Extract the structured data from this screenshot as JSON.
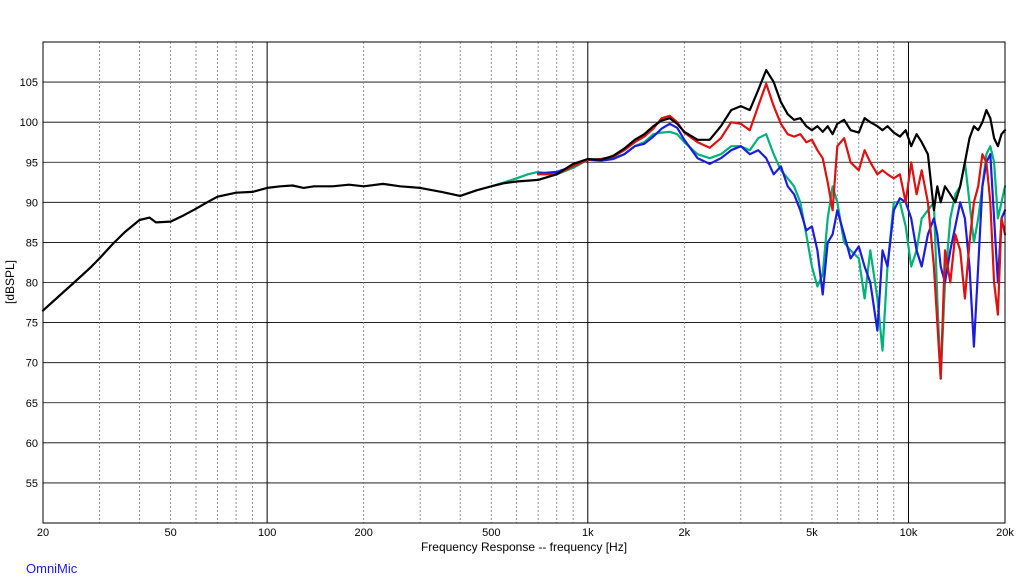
{
  "chart_data": {
    "type": "line",
    "title": "",
    "xlabel": "Frequency Response -- frequency [Hz]",
    "ylabel": "[dBSPL]",
    "x_scale": "log",
    "xlim": [
      20,
      20000
    ],
    "ylim": [
      50,
      110
    ],
    "grid": true,
    "x_major_ticks": [
      20,
      100,
      1000,
      10000,
      20000
    ],
    "x_tick_labels": [
      {
        "value": 20,
        "label": "20"
      },
      {
        "value": 50,
        "label": "50"
      },
      {
        "value": 100,
        "label": "100"
      },
      {
        "value": 200,
        "label": "200"
      },
      {
        "value": 500,
        "label": "500"
      },
      {
        "value": 1000,
        "label": "1k"
      },
      {
        "value": 2000,
        "label": "2k"
      },
      {
        "value": 5000,
        "label": "5k"
      },
      {
        "value": 10000,
        "label": "10k"
      },
      {
        "value": 20000,
        "label": "20k"
      }
    ],
    "y_ticks": [
      55,
      60,
      65,
      70,
      75,
      80,
      85,
      90,
      95,
      100,
      105
    ],
    "series": [
      {
        "color": "#00b27a",
        "points": [
          [
            500,
            92
          ],
          [
            550,
            92.5
          ],
          [
            600,
            93
          ],
          [
            650,
            93.5
          ],
          [
            700,
            93.8
          ],
          [
            750,
            93.6
          ],
          [
            800,
            93.5
          ],
          [
            900,
            94.3
          ],
          [
            1000,
            95.3
          ],
          [
            1100,
            95.3
          ],
          [
            1200,
            95.5
          ],
          [
            1300,
            96
          ],
          [
            1400,
            97
          ],
          [
            1500,
            97.5
          ],
          [
            1600,
            98.5
          ],
          [
            1700,
            98.7
          ],
          [
            1800,
            98.8
          ],
          [
            1900,
            98.5
          ],
          [
            2000,
            97.5
          ],
          [
            2200,
            96
          ],
          [
            2400,
            95.5
          ],
          [
            2600,
            96
          ],
          [
            2800,
            97
          ],
          [
            3000,
            97
          ],
          [
            3200,
            96.5
          ],
          [
            3400,
            98
          ],
          [
            3600,
            98.5
          ],
          [
            3800,
            96
          ],
          [
            4000,
            94
          ],
          [
            4200,
            93
          ],
          [
            4400,
            92
          ],
          [
            4600,
            90
          ],
          [
            4800,
            86
          ],
          [
            5000,
            82
          ],
          [
            5200,
            79.5
          ],
          [
            5400,
            81
          ],
          [
            5600,
            88
          ],
          [
            5800,
            92
          ],
          [
            6000,
            90
          ],
          [
            6300,
            85
          ],
          [
            6600,
            84
          ],
          [
            7000,
            83
          ],
          [
            7300,
            78
          ],
          [
            7600,
            84
          ],
          [
            8000,
            78
          ],
          [
            8300,
            71.5
          ],
          [
            8600,
            82
          ],
          [
            9000,
            90
          ],
          [
            9400,
            90
          ],
          [
            9800,
            87
          ],
          [
            10200,
            82
          ],
          [
            10600,
            84
          ],
          [
            11000,
            88
          ],
          [
            11500,
            89
          ],
          [
            12000,
            90
          ],
          [
            12300,
            78
          ],
          [
            12600,
            68
          ],
          [
            13000,
            80
          ],
          [
            13500,
            88
          ],
          [
            14000,
            91
          ],
          [
            14500,
            92
          ],
          [
            15000,
            95
          ],
          [
            15500,
            90
          ],
          [
            16000,
            85
          ],
          [
            16500,
            88
          ],
          [
            17000,
            92
          ],
          [
            17500,
            96
          ],
          [
            18000,
            97
          ],
          [
            18500,
            95
          ],
          [
            19000,
            88
          ],
          [
            19500,
            90
          ],
          [
            20000,
            92
          ]
        ]
      },
      {
        "color": "#1c1ce0",
        "points": [
          [
            700,
            93.6
          ],
          [
            800,
            93.8
          ],
          [
            900,
            94.5
          ],
          [
            1000,
            95.3
          ],
          [
            1100,
            95.2
          ],
          [
            1200,
            95.4
          ],
          [
            1300,
            96
          ],
          [
            1400,
            97
          ],
          [
            1500,
            97.3
          ],
          [
            1600,
            98.2
          ],
          [
            1700,
            99.2
          ],
          [
            1800,
            99.8
          ],
          [
            1900,
            99.3
          ],
          [
            2000,
            97.8
          ],
          [
            2200,
            95.5
          ],
          [
            2400,
            94.8
          ],
          [
            2600,
            95.5
          ],
          [
            2800,
            96.5
          ],
          [
            3000,
            97
          ],
          [
            3200,
            96
          ],
          [
            3400,
            96.5
          ],
          [
            3600,
            95.5
          ],
          [
            3800,
            93.5
          ],
          [
            4000,
            94.5
          ],
          [
            4200,
            92
          ],
          [
            4400,
            91
          ],
          [
            4600,
            89
          ],
          [
            4800,
            86.5
          ],
          [
            5000,
            87
          ],
          [
            5200,
            84
          ],
          [
            5400,
            78.5
          ],
          [
            5600,
            85
          ],
          [
            5800,
            86
          ],
          [
            6000,
            89
          ],
          [
            6300,
            86
          ],
          [
            6600,
            83
          ],
          [
            7000,
            84.5
          ],
          [
            7300,
            82
          ],
          [
            7600,
            80
          ],
          [
            8000,
            74
          ],
          [
            8300,
            84
          ],
          [
            8600,
            82
          ],
          [
            9000,
            89
          ],
          [
            9400,
            90.5
          ],
          [
            9800,
            90
          ],
          [
            10200,
            88
          ],
          [
            10600,
            84
          ],
          [
            11000,
            82
          ],
          [
            11500,
            86
          ],
          [
            12000,
            88
          ],
          [
            12300,
            86
          ],
          [
            12600,
            82
          ],
          [
            13000,
            80
          ],
          [
            13500,
            84
          ],
          [
            14000,
            87
          ],
          [
            14500,
            90
          ],
          [
            15000,
            88
          ],
          [
            15500,
            82
          ],
          [
            16000,
            72
          ],
          [
            16500,
            82
          ],
          [
            17000,
            92
          ],
          [
            17500,
            95
          ],
          [
            18000,
            96
          ],
          [
            18500,
            88
          ],
          [
            19000,
            80
          ],
          [
            19500,
            88
          ],
          [
            20000,
            89
          ]
        ]
      },
      {
        "color": "#e01010",
        "points": [
          [
            700,
            93.5
          ],
          [
            800,
            93.5
          ],
          [
            900,
            94.5
          ],
          [
            1000,
            95.3
          ],
          [
            1100,
            95.4
          ],
          [
            1200,
            95.7
          ],
          [
            1300,
            96.5
          ],
          [
            1400,
            97.5
          ],
          [
            1500,
            98.2
          ],
          [
            1600,
            99.2
          ],
          [
            1700,
            100.5
          ],
          [
            1800,
            100.8
          ],
          [
            1900,
            100
          ],
          [
            2000,
            98.7
          ],
          [
            2200,
            97.5
          ],
          [
            2400,
            96.8
          ],
          [
            2600,
            98
          ],
          [
            2800,
            100
          ],
          [
            3000,
            99.8
          ],
          [
            3200,
            99
          ],
          [
            3400,
            102
          ],
          [
            3600,
            104.8
          ],
          [
            3800,
            102
          ],
          [
            4000,
            99.8
          ],
          [
            4200,
            98.5
          ],
          [
            4400,
            98.2
          ],
          [
            4600,
            98.5
          ],
          [
            4800,
            97.5
          ],
          [
            5000,
            97.8
          ],
          [
            5200,
            96.5
          ],
          [
            5400,
            95.5
          ],
          [
            5600,
            92.5
          ],
          [
            5800,
            89
          ],
          [
            6000,
            97
          ],
          [
            6300,
            98
          ],
          [
            6600,
            95
          ],
          [
            7000,
            94
          ],
          [
            7300,
            96.5
          ],
          [
            7600,
            95
          ],
          [
            8000,
            93.5
          ],
          [
            8300,
            94
          ],
          [
            8600,
            93.5
          ],
          [
            9000,
            93
          ],
          [
            9400,
            93.5
          ],
          [
            9800,
            90
          ],
          [
            10200,
            95
          ],
          [
            10600,
            91
          ],
          [
            11000,
            94
          ],
          [
            11500,
            90
          ],
          [
            12000,
            82
          ],
          [
            12300,
            75
          ],
          [
            12600,
            68
          ],
          [
            13000,
            84
          ],
          [
            13500,
            80
          ],
          [
            14000,
            86
          ],
          [
            14500,
            84
          ],
          [
            15000,
            78
          ],
          [
            15500,
            85
          ],
          [
            16000,
            90
          ],
          [
            16500,
            92
          ],
          [
            17000,
            96
          ],
          [
            17500,
            95
          ],
          [
            18000,
            90
          ],
          [
            18500,
            80
          ],
          [
            19000,
            76
          ],
          [
            19500,
            88
          ],
          [
            20000,
            86
          ]
        ]
      },
      {
        "color": "#000000",
        "points": [
          [
            20,
            76.5
          ],
          [
            22,
            78
          ],
          [
            25,
            80
          ],
          [
            28,
            81.8
          ],
          [
            30,
            83
          ],
          [
            33,
            84.8
          ],
          [
            36,
            86.3
          ],
          [
            40,
            87.8
          ],
          [
            43,
            88.1
          ],
          [
            45,
            87.5
          ],
          [
            50,
            87.6
          ],
          [
            55,
            88.4
          ],
          [
            60,
            89.2
          ],
          [
            65,
            90
          ],
          [
            70,
            90.7
          ],
          [
            80,
            91.2
          ],
          [
            90,
            91.3
          ],
          [
            100,
            91.8
          ],
          [
            110,
            92
          ],
          [
            120,
            92.1
          ],
          [
            130,
            91.8
          ],
          [
            140,
            92
          ],
          [
            160,
            92
          ],
          [
            180,
            92.2
          ],
          [
            200,
            92
          ],
          [
            230,
            92.3
          ],
          [
            260,
            92
          ],
          [
            300,
            91.8
          ],
          [
            350,
            91.3
          ],
          [
            400,
            90.8
          ],
          [
            450,
            91.5
          ],
          [
            500,
            92
          ],
          [
            550,
            92.4
          ],
          [
            600,
            92.6
          ],
          [
            700,
            92.8
          ],
          [
            800,
            93.5
          ],
          [
            900,
            94.8
          ],
          [
            1000,
            95.4
          ],
          [
            1100,
            95.3
          ],
          [
            1200,
            95.8
          ],
          [
            1300,
            96.7
          ],
          [
            1400,
            97.8
          ],
          [
            1500,
            98.5
          ],
          [
            1600,
            99.5
          ],
          [
            1700,
            100.2
          ],
          [
            1800,
            100.5
          ],
          [
            1900,
            99.8
          ],
          [
            2000,
            98.8
          ],
          [
            2200,
            97.8
          ],
          [
            2400,
            97.8
          ],
          [
            2600,
            99.5
          ],
          [
            2800,
            101.5
          ],
          [
            3000,
            102
          ],
          [
            3200,
            101.5
          ],
          [
            3400,
            104
          ],
          [
            3600,
            106.5
          ],
          [
            3800,
            105
          ],
          [
            4000,
            102.5
          ],
          [
            4200,
            101
          ],
          [
            4400,
            100.3
          ],
          [
            4600,
            100.5
          ],
          [
            4800,
            99.5
          ],
          [
            5000,
            99
          ],
          [
            5200,
            99.5
          ],
          [
            5400,
            98.8
          ],
          [
            5600,
            99.5
          ],
          [
            5800,
            98.5
          ],
          [
            6000,
            99.8
          ],
          [
            6300,
            100.3
          ],
          [
            6600,
            99
          ],
          [
            7000,
            98.7
          ],
          [
            7300,
            100.5
          ],
          [
            7600,
            100
          ],
          [
            8000,
            99.5
          ],
          [
            8300,
            99
          ],
          [
            8600,
            99.5
          ],
          [
            9000,
            98.7
          ],
          [
            9400,
            98.2
          ],
          [
            9800,
            99
          ],
          [
            10200,
            97
          ],
          [
            10600,
            98.5
          ],
          [
            11000,
            97.5
          ],
          [
            11500,
            96
          ],
          [
            12000,
            89
          ],
          [
            12300,
            92
          ],
          [
            12600,
            90
          ],
          [
            13000,
            92
          ],
          [
            13500,
            91
          ],
          [
            14000,
            90
          ],
          [
            14500,
            92
          ],
          [
            15000,
            95
          ],
          [
            15500,
            98
          ],
          [
            16000,
            99.5
          ],
          [
            16500,
            99
          ],
          [
            17000,
            100
          ],
          [
            17500,
            101.5
          ],
          [
            18000,
            100.5
          ],
          [
            18500,
            98
          ],
          [
            19000,
            97
          ],
          [
            19500,
            98.5
          ],
          [
            20000,
            99
          ]
        ]
      }
    ]
  },
  "watermark": {
    "text": "OmniMic",
    "color": "#1c1ce0"
  }
}
